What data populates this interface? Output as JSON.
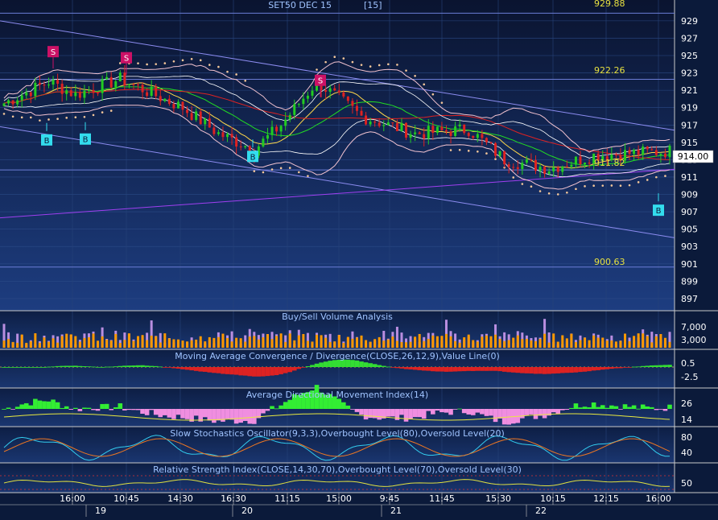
{
  "chart_data": {
    "type": "candlestick",
    "main": {
      "title": "SET50 DEC 15",
      "title_suffix": "[15]",
      "y_ticks": [
        929,
        927,
        925,
        923,
        921,
        919,
        917,
        915,
        913,
        911,
        909,
        907,
        905,
        903,
        901,
        899,
        897
      ],
      "ylim": [
        895.6,
        931.4
      ],
      "levels": [
        "929.88",
        "922.26",
        "911.82",
        "900.63"
      ],
      "level_values": [
        929.88,
        922.26,
        911.82,
        900.63
      ],
      "last_price": "914.00",
      "last_value": 914.0,
      "markers": [
        {
          "label": "S",
          "x": 66,
          "y": 924.8
        },
        {
          "label": "S",
          "x": 157,
          "y": 924.1
        },
        {
          "label": "S",
          "x": 398,
          "y": 921.5
        },
        {
          "label": "B",
          "x": 58,
          "y": 916.3
        },
        {
          "label": "B",
          "x": 106,
          "y": 916.4
        },
        {
          "label": "B",
          "x": 314,
          "y": 914.4
        },
        {
          "label": "B",
          "x": 818,
          "y": 908.2
        }
      ]
    },
    "panels": [
      {
        "id": "volume",
        "title": "Buy/Sell Volume Analysis",
        "y_ticks": [
          "7,000",
          "3,000"
        ]
      },
      {
        "id": "macd",
        "title": "Moving Average Convergence / Divergence(CLOSE,26,12,9),Value Line(0)",
        "y_ticks": [
          "0.5",
          "-2.5"
        ]
      },
      {
        "id": "adx",
        "title": "Average Directional Movement Index(14)",
        "y_ticks": [
          "26",
          "14"
        ]
      },
      {
        "id": "stoch",
        "title": "Slow Stochastics Oscillator(9,3,3),Overbought Level(80),Oversold Level(20)",
        "y_ticks": [
          "80",
          "40"
        ]
      },
      {
        "id": "rsi",
        "title": "Relative Strength Index(CLOSE,14,30,70),Overbought Level(70),Oversold Level(30)",
        "y_ticks": [
          "50"
        ]
      }
    ],
    "time_labels": [
      "16:00",
      "10:45",
      "14:30",
      "16:30",
      "11:15",
      "15:00",
      "9:45",
      "11:45",
      "15:30",
      "10:15",
      "12:15",
      "16:00"
    ],
    "date_labels": [
      "19",
      "20",
      "21",
      "22"
    ],
    "colors": {
      "up": "#22cc22",
      "down": "#dd2222",
      "buy": "#33ddee",
      "sell": "#cc1166",
      "vol_buy": "#ff9900",
      "vol_sell": "#b98ee0"
    }
  }
}
